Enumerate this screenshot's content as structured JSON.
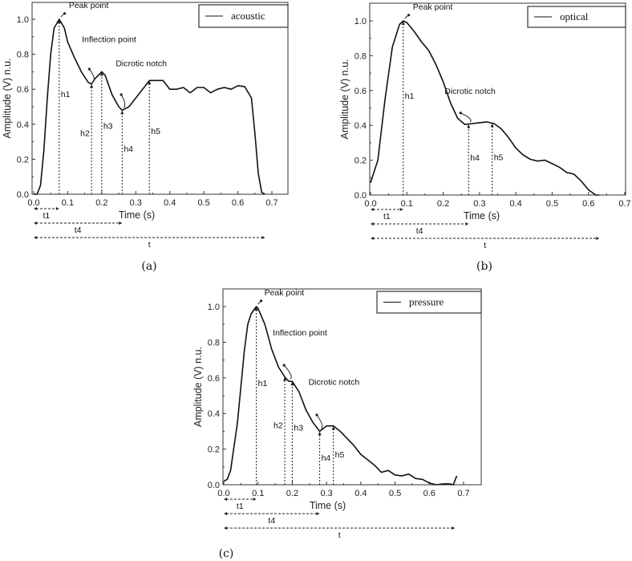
{
  "chart_data": [
    {
      "type": "line",
      "panel_label": "(a)",
      "legend": "acoustic",
      "legend_placement": "top-right",
      "xlabel": "Time (s)",
      "ylabel": "Amplitude (V) n.u.",
      "xlim": [
        0,
        0.7
      ],
      "ylim": [
        0,
        1.0
      ],
      "xticks": [
        "0.0",
        "0.1",
        "0.2",
        "0.3",
        "0.4",
        "0.5",
        "0.6",
        "0.7"
      ],
      "yticks": [
        "0.0",
        "0.2",
        "0.4",
        "0.6",
        "0.8",
        "1.0"
      ],
      "line_color": "#111111",
      "series": [
        {
          "name": "acoustic",
          "x": [
            0,
            0.01,
            0.02,
            0.03,
            0.04,
            0.05,
            0.06,
            0.075,
            0.09,
            0.1,
            0.12,
            0.14,
            0.16,
            0.17,
            0.18,
            0.2,
            0.21,
            0.23,
            0.25,
            0.26,
            0.28,
            0.3,
            0.32,
            0.34,
            0.36,
            0.38,
            0.4,
            0.42,
            0.44,
            0.46,
            0.48,
            0.5,
            0.52,
            0.54,
            0.56,
            0.58,
            0.6,
            0.62,
            0.64,
            0.65,
            0.66,
            0.67,
            0.68
          ],
          "y": [
            0,
            0,
            0.05,
            0.25,
            0.55,
            0.8,
            0.95,
            1.0,
            0.95,
            0.87,
            0.78,
            0.7,
            0.64,
            0.63,
            0.66,
            0.7,
            0.68,
            0.57,
            0.5,
            0.48,
            0.5,
            0.55,
            0.6,
            0.65,
            0.65,
            0.65,
            0.6,
            0.6,
            0.61,
            0.58,
            0.61,
            0.61,
            0.58,
            0.6,
            0.61,
            0.6,
            0.62,
            0.615,
            0.55,
            0.35,
            0.12,
            0.01,
            0
          ]
        }
      ],
      "markers": [
        {
          "label": "h1",
          "x": 0.075
        },
        {
          "label": "h2",
          "x": 0.17
        },
        {
          "label": "h3",
          "x": 0.2
        },
        {
          "label": "h4",
          "x": 0.26
        },
        {
          "label": "h5",
          "x": 0.34
        }
      ],
      "intervals": [
        {
          "label": "t1",
          "x": 0.075
        },
        {
          "label": "t4",
          "x": 0.26
        },
        {
          "label": "t",
          "x": 0.68
        }
      ],
      "annotations": [
        "Peak point",
        "Inflection point",
        "Dicrotic notch"
      ]
    },
    {
      "type": "line",
      "panel_label": "(b)",
      "legend": "optical",
      "legend_placement": "top-right",
      "xlabel": "Time (s)",
      "ylabel": "Amplitude (V) n.u.",
      "xlim": [
        0,
        0.7
      ],
      "ylim": [
        0,
        1.0
      ],
      "xticks": [
        "0.0",
        "0.1",
        "0.2",
        "0.3",
        "0.4",
        "0.5",
        "0.6",
        "0.7"
      ],
      "yticks": [
        "0.0",
        "0.2",
        "0.4",
        "0.6",
        "0.8",
        "1.0"
      ],
      "line_color": "#111111",
      "series": [
        {
          "name": "optical",
          "x": [
            0,
            0.02,
            0.04,
            0.06,
            0.08,
            0.09,
            0.1,
            0.12,
            0.14,
            0.16,
            0.18,
            0.2,
            0.22,
            0.24,
            0.26,
            0.28,
            0.3,
            0.32,
            0.34,
            0.36,
            0.38,
            0.4,
            0.42,
            0.44,
            0.46,
            0.48,
            0.5,
            0.52,
            0.54,
            0.56,
            0.58,
            0.6,
            0.62,
            0.63
          ],
          "y": [
            0.07,
            0.2,
            0.55,
            0.85,
            0.98,
            1.0,
            0.99,
            0.94,
            0.88,
            0.83,
            0.75,
            0.65,
            0.53,
            0.44,
            0.405,
            0.41,
            0.415,
            0.42,
            0.41,
            0.38,
            0.33,
            0.27,
            0.23,
            0.205,
            0.195,
            0.2,
            0.18,
            0.16,
            0.13,
            0.12,
            0.08,
            0.03,
            0,
            0
          ]
        }
      ],
      "markers": [
        {
          "label": "h1",
          "x": 0.09
        },
        {
          "label": "h4",
          "x": 0.27
        },
        {
          "label": "h5",
          "x": 0.335
        }
      ],
      "intervals": [
        {
          "label": "t1",
          "x": 0.09
        },
        {
          "label": "t4",
          "x": 0.27
        },
        {
          "label": "t",
          "x": 0.63
        }
      ],
      "annotations": [
        "Peak point",
        "Dicrotic notch"
      ]
    },
    {
      "type": "line",
      "panel_label": "(c)",
      "legend": "pressure",
      "legend_placement": "top-right",
      "xlabel": "Time (s)",
      "ylabel": "Amplitude (V) n.u.",
      "xlim": [
        0,
        0.7
      ],
      "ylim": [
        0,
        1.0
      ],
      "xticks": [
        "0.0",
        "0.1",
        "0.2",
        "0.3",
        "0.4",
        "0.5",
        "0.6",
        "0.7"
      ],
      "yticks": [
        "0.0",
        "0.2",
        "0.4",
        "0.6",
        "0.8",
        "1.0"
      ],
      "line_color": "#111111",
      "series": [
        {
          "name": "pressure",
          "x": [
            0,
            0.01,
            0.02,
            0.04,
            0.06,
            0.07,
            0.08,
            0.095,
            0.1,
            0.12,
            0.14,
            0.16,
            0.18,
            0.19,
            0.2,
            0.22,
            0.24,
            0.26,
            0.28,
            0.3,
            0.32,
            0.34,
            0.36,
            0.38,
            0.4,
            0.42,
            0.44,
            0.46,
            0.48,
            0.5,
            0.52,
            0.54,
            0.56,
            0.58,
            0.6,
            0.62,
            0.64,
            0.66,
            0.67,
            0.68
          ],
          "y": [
            0.02,
            0.03,
            0.08,
            0.35,
            0.75,
            0.9,
            0.96,
            1.0,
            0.99,
            0.9,
            0.76,
            0.66,
            0.6,
            0.58,
            0.58,
            0.52,
            0.42,
            0.35,
            0.3,
            0.33,
            0.33,
            0.3,
            0.26,
            0.22,
            0.17,
            0.14,
            0.11,
            0.07,
            0.08,
            0.055,
            0.05,
            0.06,
            0.035,
            0.03,
            0.01,
            0,
            0.005,
            0.005,
            0,
            0.05
          ]
        }
      ],
      "markers": [
        {
          "label": "h1",
          "x": 0.095
        },
        {
          "label": "h2",
          "x": 0.178
        },
        {
          "label": "h3",
          "x": 0.2
        },
        {
          "label": "h4",
          "x": 0.28
        },
        {
          "label": "h5",
          "x": 0.32
        }
      ],
      "intervals": [
        {
          "label": "t1",
          "x": 0.095
        },
        {
          "label": "t4",
          "x": 0.28
        },
        {
          "label": "t",
          "x": 0.675
        }
      ],
      "annotations": [
        "Peak point",
        "Inflection point",
        "Dicrotic notch"
      ]
    }
  ]
}
